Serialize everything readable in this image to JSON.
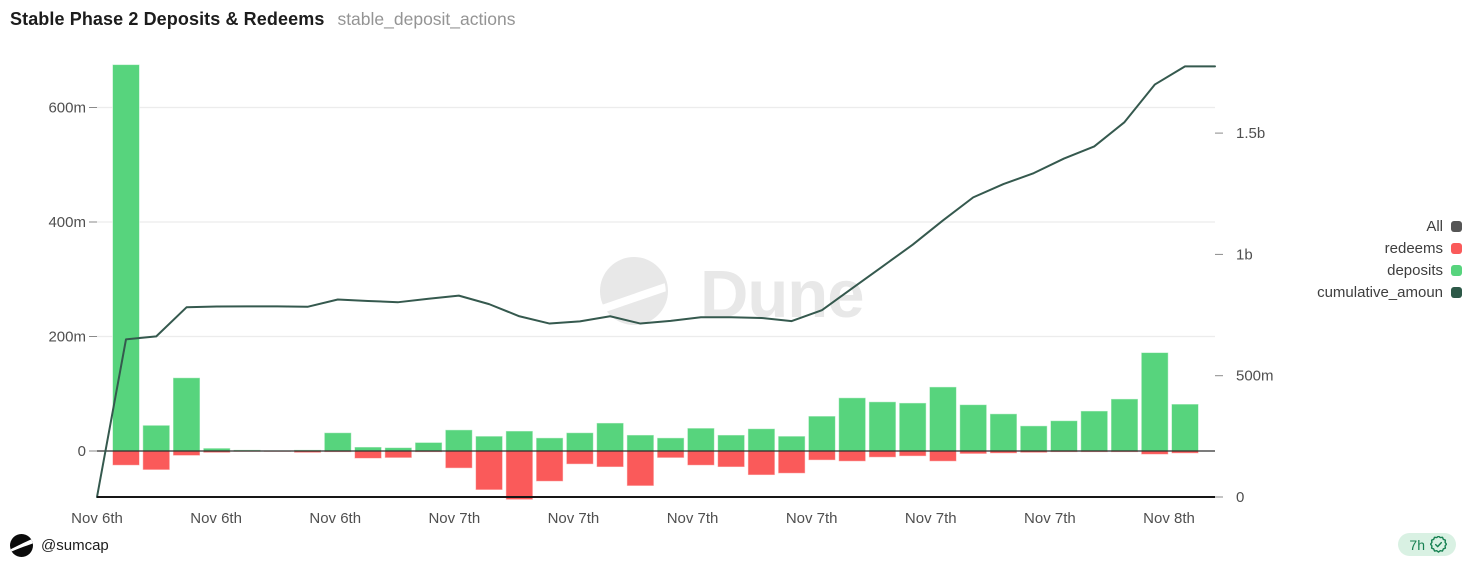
{
  "header": {
    "title": "Stable Phase 2 Deposits & Redeems",
    "query_name": "stable_deposit_actions"
  },
  "watermark": {
    "text": "Dune"
  },
  "legend": {
    "items": [
      {
        "label": "All",
        "color": "#555555"
      },
      {
        "label": "redeems",
        "color": "#fa5a5a"
      },
      {
        "label": "deposits",
        "color": "#57d47d"
      },
      {
        "label": "cumulative_amoun",
        "color": "#2d5948"
      }
    ]
  },
  "footer": {
    "author": "@sumcap",
    "age_badge": "7h"
  },
  "colors": {
    "deposits": "#57d47d",
    "redeems": "#fa5a5a",
    "cumulative_line": "#35594e",
    "grid": "#ececec",
    "axis_line": "#161616",
    "zero_line": "#2f2f2f",
    "tick_text": "#4f4f4f",
    "watermark": "#e8e8e8",
    "badge_bg": "#d9f1e3",
    "badge_fg": "#178152"
  },
  "chart_data": {
    "type": "bar",
    "title": "Stable Phase 2 Deposits & Redeems",
    "subtitle": "stable_deposit_actions",
    "unit": "millions (m) / billions (b)",
    "grid": true,
    "legend_position": "right",
    "x_tick_labels": [
      "Nov 6th",
      "Nov 6th",
      "Nov 6th",
      "Nov 7th",
      "Nov 7th",
      "Nov 7th",
      "Nov 7th",
      "Nov 7th",
      "Nov 7th",
      "Nov 8th"
    ],
    "left_axis": {
      "ticks": [
        "600m",
        "400m",
        "200m",
        "0"
      ],
      "tick_values": [
        600,
        400,
        200,
        0
      ],
      "range": [
        -80,
        686
      ]
    },
    "right_axis": {
      "ticks": [
        "1.5b",
        "1b",
        "500m",
        "0"
      ],
      "tick_values": [
        1500,
        1000,
        500,
        0
      ],
      "range": [
        0,
        1800
      ]
    },
    "series": [
      {
        "name": "deposits",
        "type": "bar",
        "axis": "left",
        "color": "#57d47d",
        "values": [
          675,
          45,
          128,
          5,
          2,
          1,
          2,
          32,
          7,
          6,
          15,
          37,
          26,
          35,
          23,
          32,
          49,
          28,
          23,
          40,
          28,
          39,
          26,
          61,
          93,
          86,
          84,
          112,
          81,
          65,
          44,
          53,
          70,
          91,
          172,
          82
        ]
      },
      {
        "name": "redeems",
        "type": "bar",
        "axis": "left",
        "color": "#fa5a5a",
        "values": [
          -25,
          -33,
          -8,
          -3,
          -1,
          -1,
          -3,
          -2,
          -13,
          -12,
          -2,
          -30,
          -68,
          -85,
          -53,
          -23,
          -28,
          -61,
          -12,
          -25,
          -28,
          -42,
          -39,
          -16,
          -18,
          -11,
          -9,
          -18,
          -5,
          -4,
          -3,
          -2,
          -2,
          -2,
          -6,
          -4
        ]
      },
      {
        "name": "cumulative_amount",
        "type": "line",
        "axis": "right",
        "color": "#35594e",
        "start_value": 0,
        "values": [
          650,
          662,
          782,
          785,
          786,
          786,
          784,
          814,
          808,
          803,
          817,
          830,
          795,
          745,
          715,
          724,
          745,
          715,
          726,
          741,
          741,
          738,
          725,
          770,
          860,
          950,
          1040,
          1140,
          1235,
          1290,
          1335,
          1395,
          1445,
          1545,
          1700,
          1775
        ]
      }
    ]
  }
}
